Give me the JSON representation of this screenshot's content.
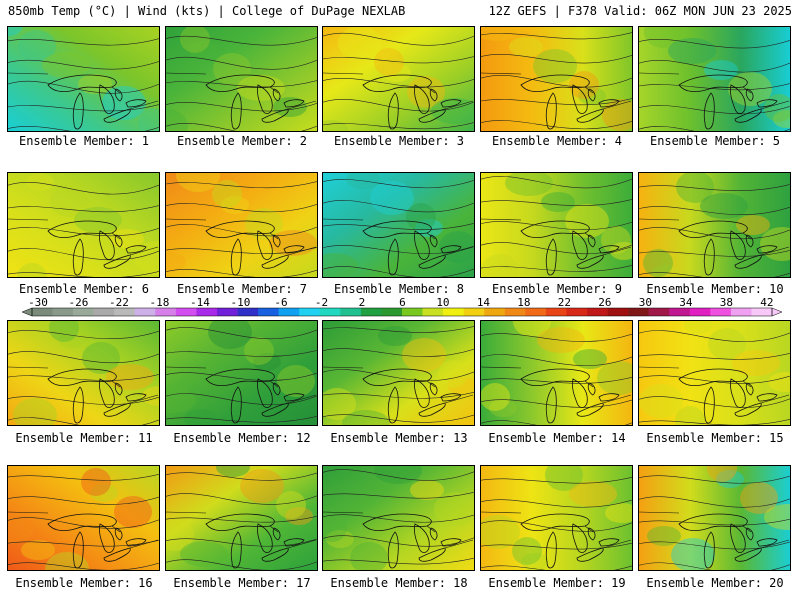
{
  "header": {
    "left": "850mb Temp (°C) | Wind (kts) | College of DuPage NEXLAB",
    "right": "12Z GEFS | F378 Valid: 06Z MON JUN 23 2025"
  },
  "caption_prefix": "Ensemble Member:",
  "panels": [
    {
      "member": "1",
      "ramp": [
        "#18cfd8",
        "#3ec88a",
        "#7cc52a",
        "#a9d322"
      ]
    },
    {
      "member": "2",
      "ramp": [
        "#2fa23a",
        "#4ab43a",
        "#8cc82c",
        "#c8de1c"
      ]
    },
    {
      "member": "3",
      "ramp": [
        "#3bb34a",
        "#9ccf26",
        "#e6e818",
        "#f5b810"
      ]
    },
    {
      "member": "4",
      "ramp": [
        "#f49a10",
        "#f4bb10",
        "#d9e01a",
        "#7cc52a"
      ]
    },
    {
      "member": "5",
      "ramp": [
        "#a6d52a",
        "#6cc02d",
        "#2aa65e",
        "#18cfd8"
      ]
    },
    {
      "member": "6",
      "ramp": [
        "#f1e214",
        "#d8e01a",
        "#b7d722",
        "#86c72c"
      ]
    },
    {
      "member": "7",
      "ramp": [
        "#f08a18",
        "#f4aa12",
        "#efd215",
        "#c4da1d"
      ]
    },
    {
      "member": "8",
      "ramp": [
        "#2aa24a",
        "#4ab43a",
        "#27b9a0",
        "#1fd0d8"
      ]
    },
    {
      "member": "9",
      "ramp": [
        "#eae616",
        "#c7d91e",
        "#72c02e",
        "#3aac3a"
      ]
    },
    {
      "member": "10",
      "ramp": [
        "#f6b210",
        "#c7d91e",
        "#52b436",
        "#2ca040"
      ]
    },
    {
      "member": "11",
      "ramp": [
        "#f4a612",
        "#eed616",
        "#a9d322",
        "#5ab834"
      ]
    },
    {
      "member": "12",
      "ramp": [
        "#8ecb28",
        "#54b334",
        "#2f9f3a",
        "#248f38"
      ]
    },
    {
      "member": "13",
      "ramp": [
        "#f4c210",
        "#d8e01a",
        "#58b634",
        "#2d9c38"
      ]
    },
    {
      "member": "14",
      "ramp": [
        "#3aac3a",
        "#8cc82c",
        "#e8e816",
        "#f4b410"
      ]
    },
    {
      "member": "15",
      "ramp": [
        "#f6c810",
        "#f1e214",
        "#d8e01a",
        "#b8d622"
      ]
    },
    {
      "member": "16",
      "ramp": [
        "#f05818",
        "#f48c14",
        "#f4c010",
        "#b8d622"
      ]
    },
    {
      "member": "17",
      "ramp": [
        "#f29a14",
        "#d0dc1c",
        "#4fb636",
        "#2aa03c"
      ]
    },
    {
      "member": "18",
      "ramp": [
        "#f3dc14",
        "#b4d622",
        "#52b436",
        "#2f9f3a"
      ]
    },
    {
      "member": "19",
      "ramp": [
        "#f4b812",
        "#eee414",
        "#b6d620",
        "#6ac030"
      ]
    },
    {
      "member": "20",
      "ramp": [
        "#f4a012",
        "#d2dc1c",
        "#5ab834",
        "#18cfd8"
      ]
    }
  ],
  "colorbar": {
    "labels": [
      "-30",
      "-26",
      "-22",
      "-18",
      "-14",
      "-10",
      "-6",
      "-2",
      "2",
      "6",
      "10",
      "14",
      "18",
      "22",
      "26",
      "30",
      "34",
      "38",
      "42"
    ],
    "colors": [
      "#7a8b7a",
      "#8a9a8a",
      "#9aaa9a",
      "#a9a9a9",
      "#b9b9b9",
      "#cdb0e8",
      "#d67fe8",
      "#d24ef0",
      "#a82ae8",
      "#7020d8",
      "#3030c8",
      "#1860e0",
      "#10a0f0",
      "#20d0f0",
      "#20d8c0",
      "#20c090",
      "#20a040",
      "#2a9a30",
      "#78c820",
      "#c8e020",
      "#f0f010",
      "#f0d010",
      "#f0a810",
      "#f08818",
      "#f06a18",
      "#e84418",
      "#d82818",
      "#c01818",
      "#a01010",
      "#801818",
      "#a01848",
      "#c01890",
      "#e020c0",
      "#f050e0",
      "#f0a0f0",
      "#f8c8f8"
    ]
  }
}
